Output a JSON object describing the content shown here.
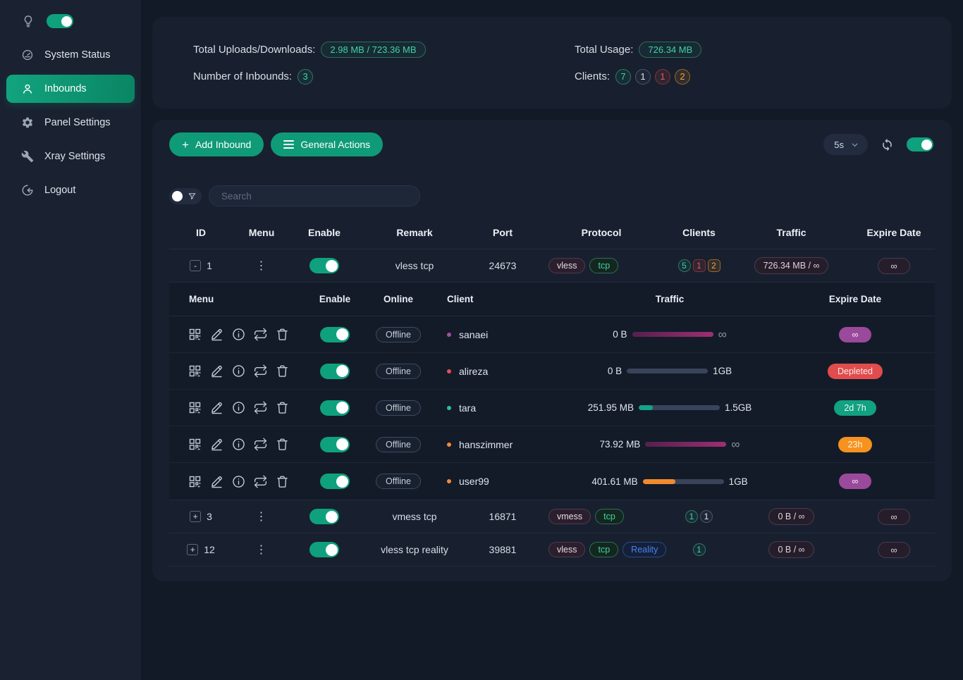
{
  "sidebar": {
    "items": [
      {
        "label": "System Status",
        "icon": "gauge",
        "active": false
      },
      {
        "label": "Inbounds",
        "icon": "user",
        "active": true
      },
      {
        "label": "Panel Settings",
        "icon": "gear",
        "active": false
      },
      {
        "label": "Xray Settings",
        "icon": "wrench",
        "active": false
      },
      {
        "label": "Logout",
        "icon": "logout",
        "active": false
      }
    ]
  },
  "stats": {
    "uploads_label": "Total Uploads/Downloads:",
    "uploads_value": "2.98 MB / 723.36 MB",
    "inbounds_label": "Number of Inbounds:",
    "inbounds_value": "3",
    "usage_label": "Total Usage:",
    "usage_value": "726.34 MB",
    "clients_label": "Clients:",
    "client_counts": [
      {
        "value": "7",
        "status": "active"
      },
      {
        "value": "1",
        "status": "neutral"
      },
      {
        "value": "1",
        "status": "depleted"
      },
      {
        "value": "2",
        "status": "expiring"
      }
    ]
  },
  "toolbar": {
    "add_inbound": "Add Inbound",
    "general_actions": "General Actions",
    "refresh_interval": "5s"
  },
  "search": {
    "placeholder": "Search"
  },
  "inbound_table": {
    "headers": [
      "ID",
      "Menu",
      "Enable",
      "Remark",
      "Port",
      "Protocol",
      "Clients",
      "Traffic",
      "Expire Date"
    ],
    "rows": [
      {
        "id": "1",
        "expand": "-",
        "expanded": true,
        "remark": "vless tcp",
        "port": "24673",
        "protocols": [
          {
            "label": "vless",
            "type": "vless"
          },
          {
            "label": "tcp",
            "type": "tcp"
          }
        ],
        "clients": [
          {
            "value": "5",
            "status": "active"
          },
          {
            "value": "1",
            "status": "depleted"
          },
          {
            "value": "2",
            "status": "expiring"
          }
        ],
        "traffic": "726.34 MB / ∞",
        "expire": "∞"
      },
      {
        "id": "3",
        "expand": "+",
        "expanded": false,
        "remark": "vmess tcp",
        "port": "16871",
        "protocols": [
          {
            "label": "vmess",
            "type": "vmess"
          },
          {
            "label": "tcp",
            "type": "tcp"
          }
        ],
        "clients": [
          {
            "value": "1",
            "status": "active"
          },
          {
            "value": "1",
            "status": "neutral"
          }
        ],
        "traffic": "0 B / ∞",
        "expire": "∞"
      },
      {
        "id": "12",
        "expand": "+",
        "expanded": false,
        "remark": "vless tcp reality",
        "port": "39881",
        "protocols": [
          {
            "label": "vless",
            "type": "vless"
          },
          {
            "label": "tcp",
            "type": "tcp"
          },
          {
            "label": "Reality",
            "type": "reality"
          }
        ],
        "clients": [
          {
            "value": "1",
            "status": "active"
          }
        ],
        "traffic": "0 B / ∞",
        "expire": "∞"
      }
    ]
  },
  "client_table": {
    "headers": [
      "Menu",
      "Enable",
      "Online",
      "Client",
      "Traffic",
      "Expire Date"
    ],
    "menu_icons": [
      "qr-code",
      "edit",
      "info",
      "reset-traffic",
      "delete"
    ],
    "rows": [
      {
        "online": "Offline",
        "name": "sanaei",
        "dot_color": "#a14fa1",
        "used": "0 B",
        "quota": "∞",
        "bar_percent": 100,
        "bar_color": "purple",
        "expire": {
          "label": "∞",
          "style": "purple"
        }
      },
      {
        "online": "Offline",
        "name": "alireza",
        "dot_color": "#e05252",
        "used": "0 B",
        "quota": "1GB",
        "bar_percent": 0,
        "bar_color": "green",
        "expire": {
          "label": "Depleted",
          "style": "red"
        }
      },
      {
        "online": "Offline",
        "name": "tara",
        "dot_color": "#2fbf8f",
        "used": "251.95 MB",
        "quota": "1.5GB",
        "bar_percent": 17,
        "bar_color": "green",
        "expire": {
          "label": "2d 7h",
          "style": "green"
        }
      },
      {
        "online": "Offline",
        "name": "hanszimmer",
        "dot_color": "#f08c3a",
        "used": "73.92 MB",
        "quota": "∞",
        "bar_percent": 100,
        "bar_color": "purple",
        "expire": {
          "label": "23h",
          "style": "orange"
        }
      },
      {
        "online": "Offline",
        "name": "user99",
        "dot_color": "#f08c3a",
        "used": "401.61 MB",
        "quota": "1GB",
        "bar_percent": 40,
        "bar_color": "orange",
        "expire": {
          "label": "∞",
          "style": "purple"
        }
      }
    ]
  }
}
